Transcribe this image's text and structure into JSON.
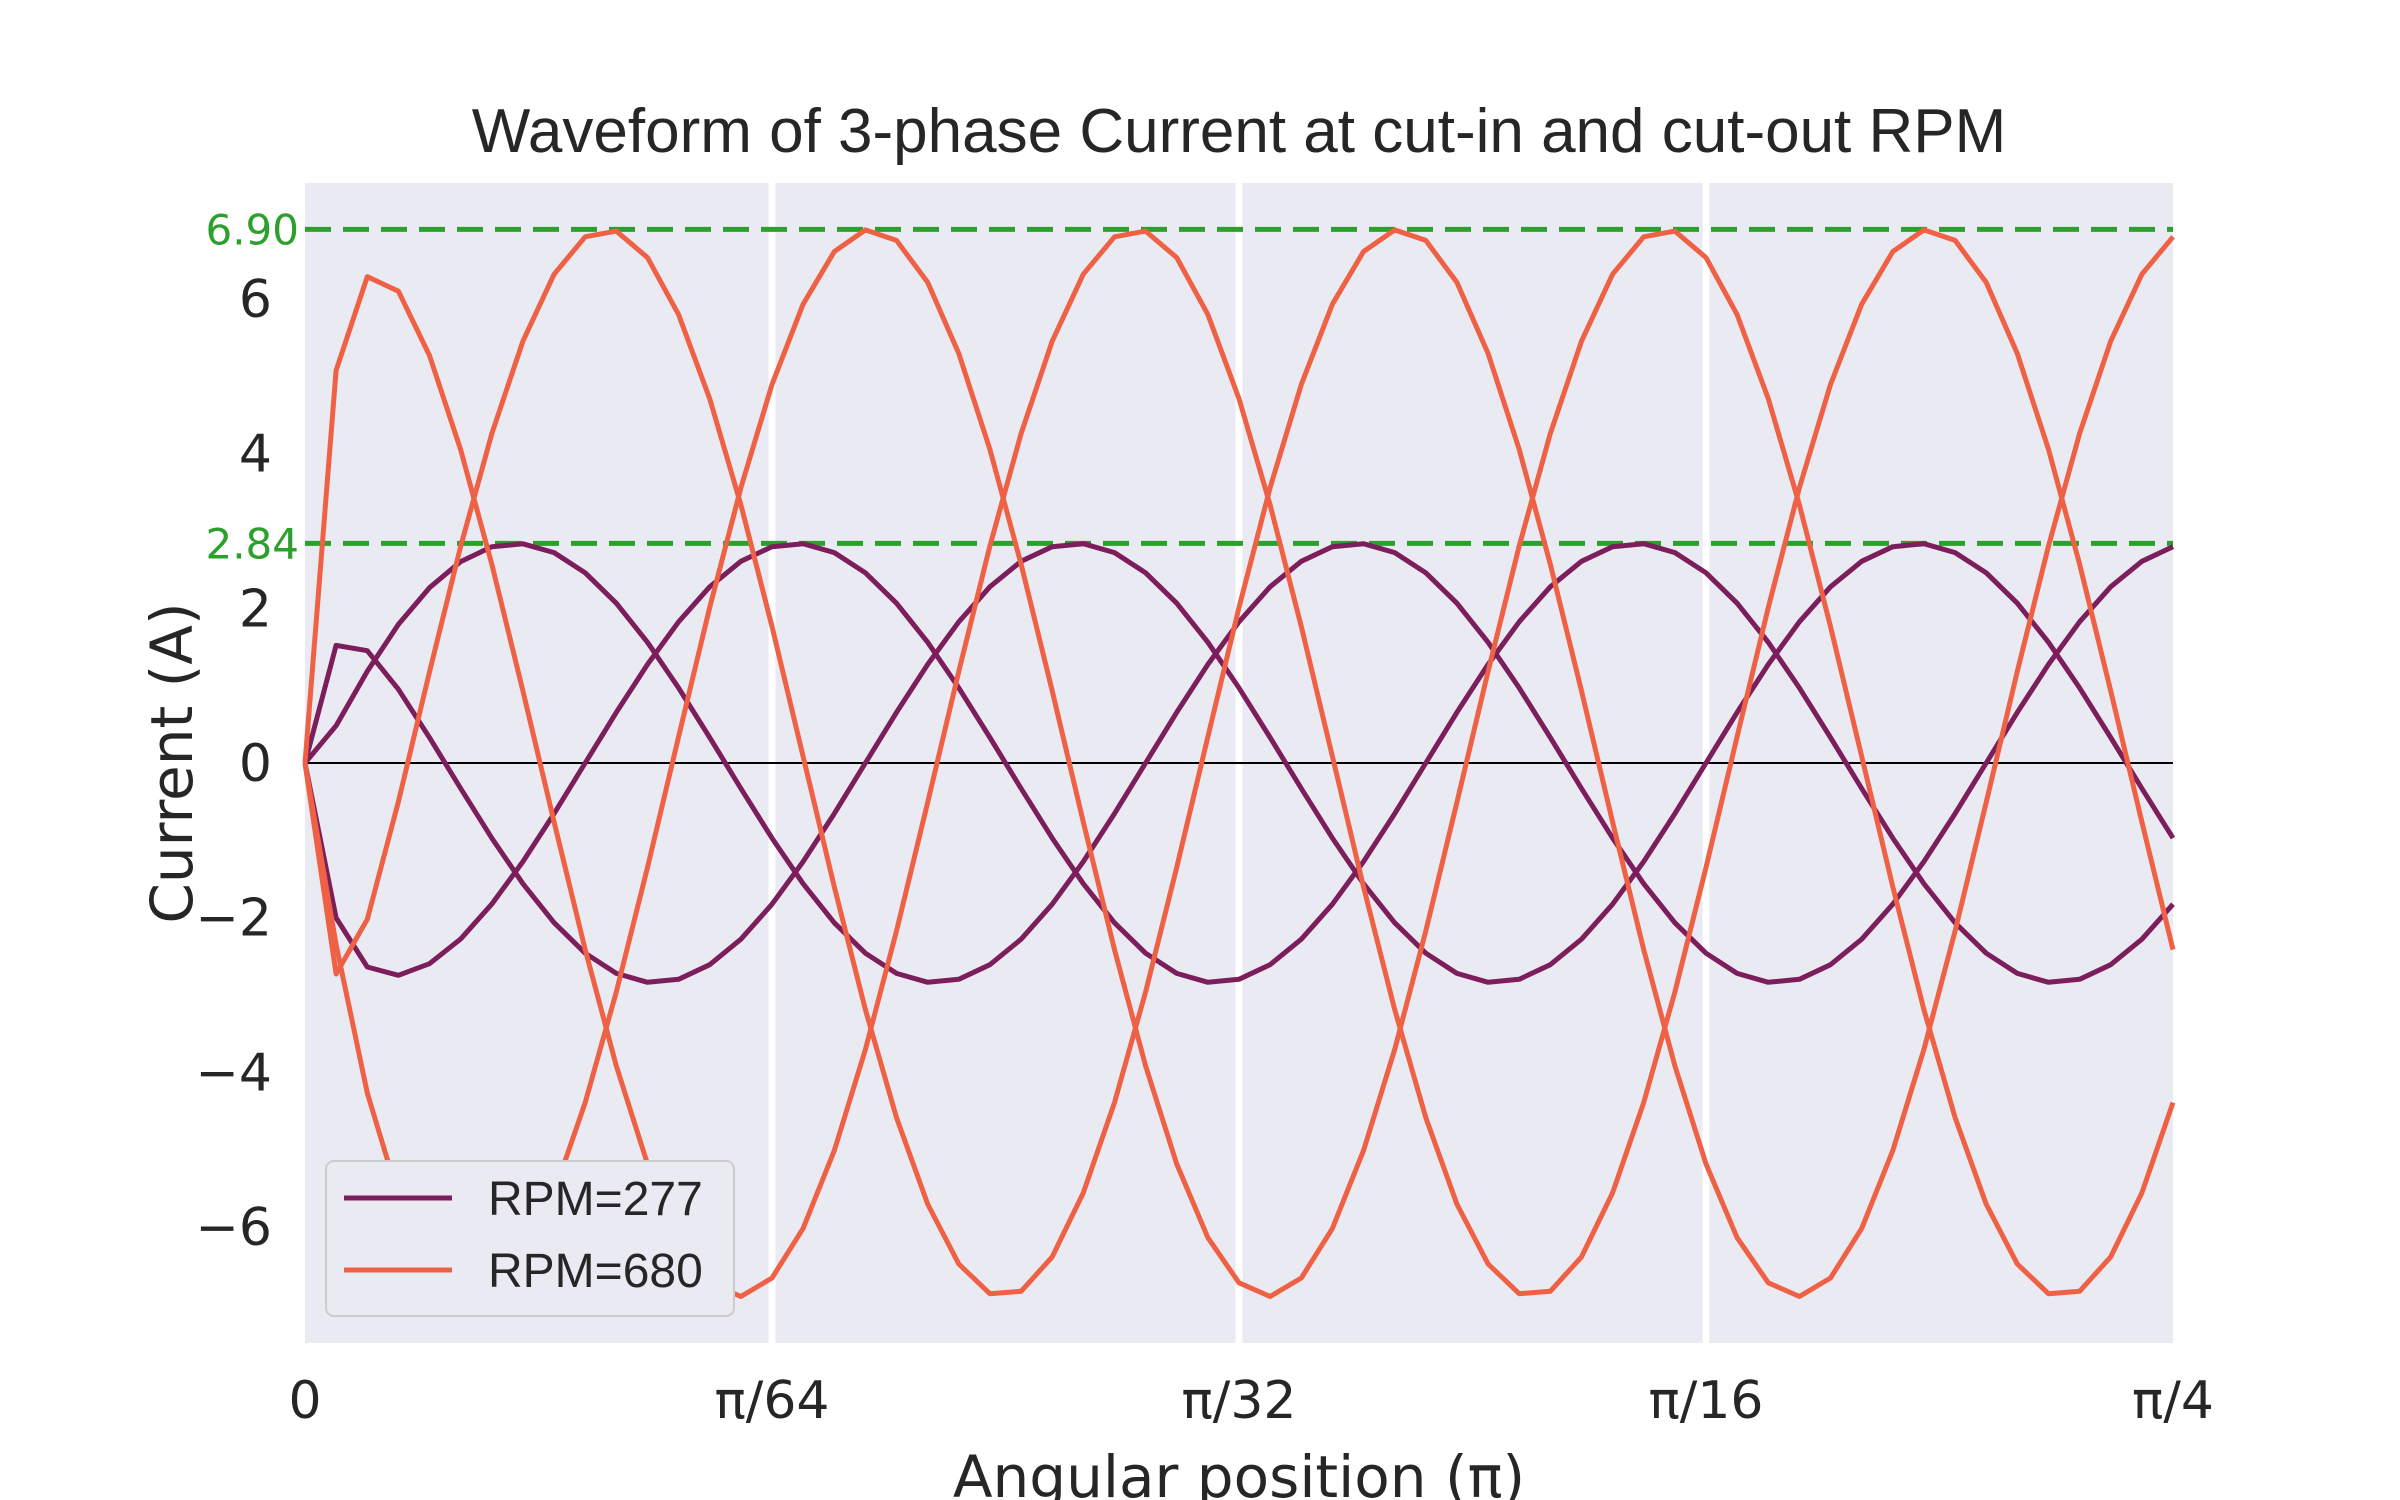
{
  "chart_data": {
    "type": "line",
    "title": "Waveform of 3-phase Current at cut-in and cut-out RPM",
    "xlabel": "Angular position (π)",
    "ylabel": "Current (A)",
    "x_ticks": [
      {
        "x": 0,
        "label": "0"
      },
      {
        "x": 1,
        "label": "π/64"
      },
      {
        "x": 2,
        "label": "π/32"
      },
      {
        "x": 3,
        "label": "π/16"
      },
      {
        "x": 4,
        "label": "π/4"
      }
    ],
    "xlim": [
      0,
      4
    ],
    "y_ticks": [
      -6,
      -4,
      -2,
      0,
      2,
      4,
      6
    ],
    "ylim": [
      -7.5,
      7.5
    ],
    "grid": true,
    "zero_line": true,
    "reference_lines": [
      {
        "y": 6.9,
        "label": "6.90",
        "color": "#2ca02c"
      },
      {
        "y": 2.84,
        "label": "2.84",
        "color": "#2ca02c"
      }
    ],
    "legend_position": "lower-left",
    "series": [
      {
        "name": "RPM=277",
        "color": "#7c1d5c",
        "amplitude": 2.84,
        "period": 1.8,
        "phase_offset": 0.6
      },
      {
        "name": "RPM=680",
        "color": "#ee6145",
        "amplitude": 6.9,
        "period": 1.7,
        "phase_offset": 0.22
      }
    ],
    "colors": {
      "background": "#eaeaf2",
      "grid": "#ffffff",
      "zero_line": "#000000"
    }
  }
}
